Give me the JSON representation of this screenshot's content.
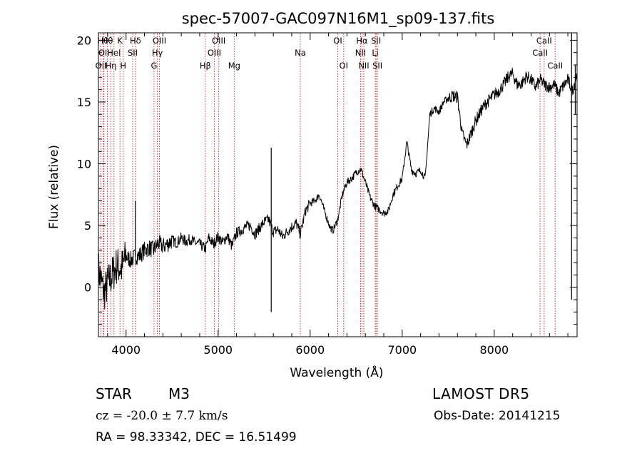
{
  "chart_data": {
    "type": "line",
    "title": "spec-57007-GAC097N16M1_sp09-137.fits",
    "xlabel": "Wavelength (Å)",
    "ylabel": "Flux (relative)",
    "xlim": [
      3700,
      8900
    ],
    "ylim": [
      -4,
      20.6
    ],
    "xticks": [
      4000,
      5000,
      6000,
      7000,
      8000
    ],
    "yticks": [
      0,
      5,
      10,
      15,
      20
    ],
    "grid": false,
    "series": [
      {
        "color": "#000000",
        "x": [
          3700,
          3760,
          3800,
          3850,
          3900,
          3950,
          4000,
          4050,
          4101,
          4150,
          4200,
          4250,
          4300,
          4350,
          4400,
          4450,
          4500,
          4550,
          4600,
          4650,
          4700,
          4750,
          4800,
          4861,
          4900,
          4950,
          5000,
          5050,
          5100,
          5150,
          5200,
          5250,
          5300,
          5350,
          5400,
          5450,
          5500,
          5550,
          5577,
          5600,
          5650,
          5700,
          5750,
          5800,
          5850,
          5893,
          5950,
          6000,
          6050,
          6100,
          6150,
          6200,
          6220,
          6250,
          6300,
          6350,
          6400,
          6450,
          6500,
          6550,
          6600,
          6650,
          6700,
          6750,
          6800,
          6850,
          6900,
          6950,
          7000,
          7050,
          7100,
          7150,
          7200,
          7250,
          7300,
          7350,
          7400,
          7450,
          7500,
          7550,
          7600,
          7650,
          7700,
          7750,
          7800,
          7850,
          7900,
          7950,
          8000,
          8050,
          8100,
          8150,
          8200,
          8250,
          8300,
          8350,
          8400,
          8450,
          8500,
          8550,
          8600,
          8650,
          8700,
          8750,
          8800,
          8850,
          8900
        ],
        "y": [
          1.5,
          -0.5,
          0.3,
          1.0,
          1.8,
          1.5,
          2.5,
          2.2,
          2.5,
          2.6,
          3.0,
          3.2,
          3.0,
          3.6,
          3.3,
          3.5,
          3.8,
          3.6,
          4.0,
          3.7,
          3.9,
          3.6,
          3.5,
          3.1,
          4.0,
          3.5,
          4.1,
          3.6,
          4.2,
          3.3,
          4.4,
          4.6,
          4.9,
          5.0,
          4.3,
          4.8,
          5.3,
          5.5,
          4.9,
          4.5,
          4.7,
          4.1,
          4.5,
          4.9,
          5.2,
          4.3,
          6.2,
          6.8,
          7.0,
          7.5,
          6.3,
          5.2,
          4.8,
          4.6,
          5.5,
          7.5,
          8.5,
          8.8,
          9.3,
          9.6,
          8.5,
          7.3,
          6.6,
          6.3,
          6.0,
          6.2,
          7.5,
          8.2,
          8.8,
          11.8,
          9.5,
          9.2,
          9.5,
          8.8,
          14.0,
          14.5,
          14.2,
          15.0,
          15.3,
          15.5,
          15.4,
          12.5,
          11.5,
          12.5,
          13.5,
          14.2,
          14.8,
          15.2,
          15.6,
          15.9,
          16.4,
          17.0,
          17.3,
          16.4,
          16.5,
          17.1,
          16.8,
          16.2,
          16.8,
          16.4,
          16.2,
          16.4,
          15.7,
          16.3,
          16.8,
          15.9,
          17.3
        ]
      }
    ],
    "lines": [
      {
        "x": 3727,
        "rows": [
          2
        ],
        "label": "OII"
      },
      {
        "x": 3750,
        "rows": [
          0
        ],
        "label": "Hθ"
      },
      {
        "x": 3760,
        "rows": [
          1
        ],
        "label": "OII"
      },
      {
        "x": 3797,
        "rows": [
          0
        ],
        "label": "Hθ"
      },
      {
        "x": 3835,
        "rows": [
          2
        ],
        "label": "Hη"
      },
      {
        "x": 3869,
        "rows": [
          1
        ],
        "label": "HeI"
      },
      {
        "x": 3934,
        "rows": [
          0
        ],
        "label": "K"
      },
      {
        "x": 3969,
        "rows": [
          2
        ],
        "label": "H"
      },
      {
        "x": 4072,
        "rows": [
          1
        ],
        "label": "SII"
      },
      {
        "x": 4102,
        "rows": [
          0
        ],
        "label": "Hδ"
      },
      {
        "x": 4304,
        "rows": [
          2
        ],
        "label": "G"
      },
      {
        "x": 4340,
        "rows": [
          1
        ],
        "label": "Hγ"
      },
      {
        "x": 4363,
        "rows": [
          0
        ],
        "label": "OIII"
      },
      {
        "x": 4861,
        "rows": [
          2
        ],
        "label": "Hβ"
      },
      {
        "x": 4959,
        "rows": [
          1
        ],
        "label": "OIII"
      },
      {
        "x": 5007,
        "rows": [
          0
        ],
        "label": "OIII"
      },
      {
        "x": 5175,
        "rows": [
          2
        ],
        "label": "Mg"
      },
      {
        "x": 5893,
        "rows": [
          1
        ],
        "label": "Na"
      },
      {
        "x": 6300,
        "rows": [
          0
        ],
        "label": "OI"
      },
      {
        "x": 6364,
        "rows": [
          2
        ],
        "label": "OI"
      },
      {
        "x": 6548,
        "rows": [
          1
        ],
        "label": "NII"
      },
      {
        "x": 6563,
        "rows": [
          0
        ],
        "label": "Hα"
      },
      {
        "x": 6583,
        "rows": [
          2
        ],
        "label": "NII"
      },
      {
        "x": 6708,
        "rows": [
          1
        ],
        "label": "Li"
      },
      {
        "x": 6716,
        "rows": [
          0
        ],
        "label": "SII"
      },
      {
        "x": 6731,
        "rows": [
          2
        ],
        "label": "SII"
      },
      {
        "x": 8498,
        "rows": [
          1
        ],
        "label": "CaII"
      },
      {
        "x": 8542,
        "rows": [
          0
        ],
        "label": "CaII"
      },
      {
        "x": 8662,
        "rows": [
          2
        ],
        "label": "CaII"
      }
    ]
  },
  "info": {
    "object_class": "STAR",
    "subclass": "M3",
    "survey": "LAMOST DR5",
    "velocity": "cz = -20.0 ± 7.7 km/s",
    "obs_date": "Obs-Date: 20141215",
    "coords": "RA =  98.33342, DEC =  16.51499"
  }
}
